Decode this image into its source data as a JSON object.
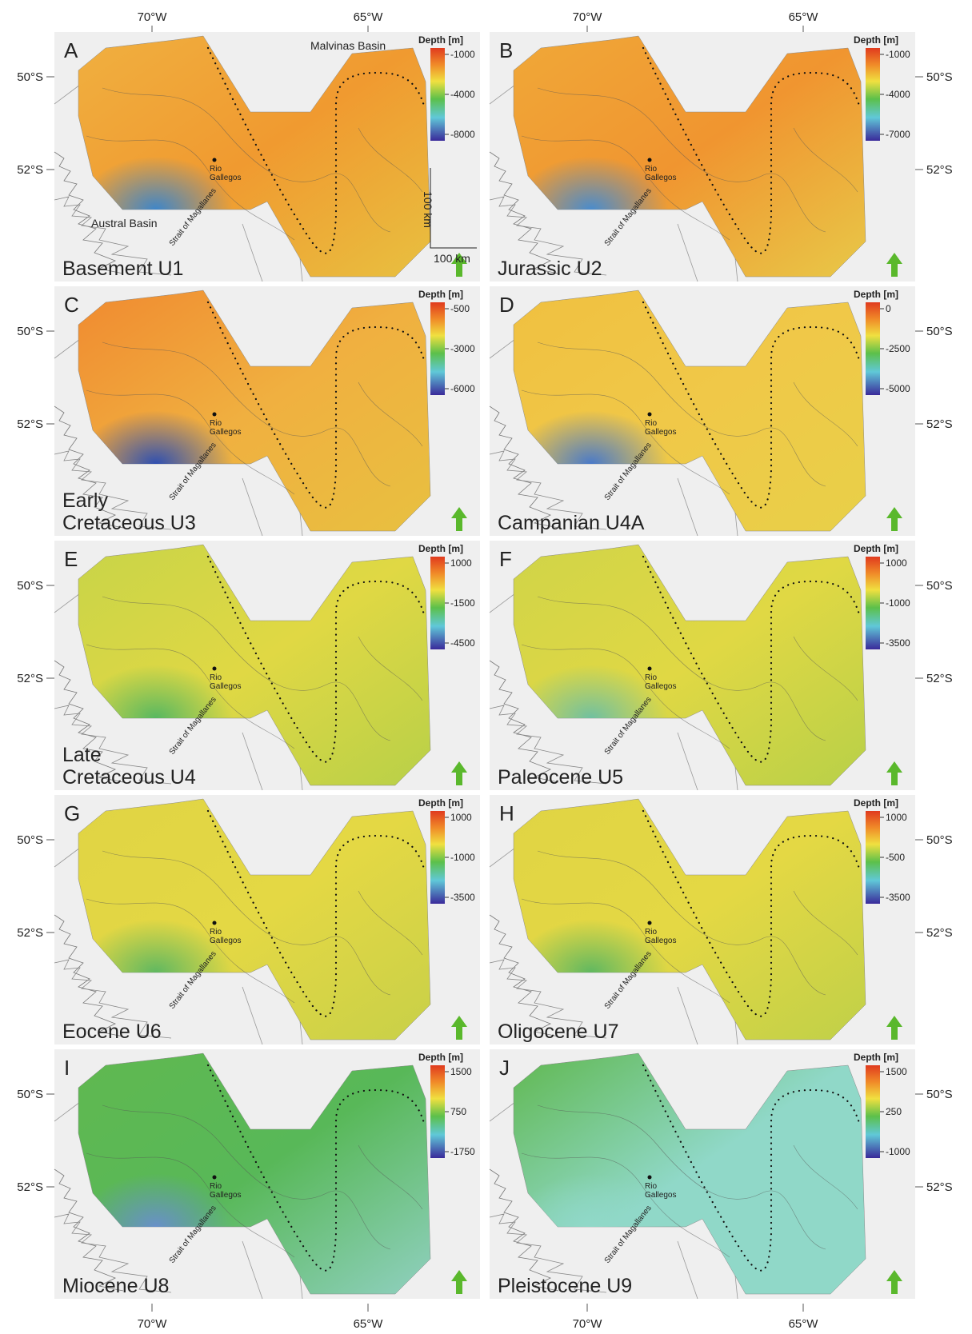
{
  "top_labels": [
    [
      "70°W",
      "65°W"
    ],
    [
      "70°W",
      "65°W"
    ]
  ],
  "bottom_labels": [
    [
      "70°W",
      "65°W"
    ],
    [
      "70°W",
      "65°W"
    ]
  ],
  "panels": [
    {
      "letter": "A",
      "title": [
        "Basement U1"
      ],
      "legend_title": "Depth [m]",
      "legend_ticks": [
        "-1000",
        "-4000",
        "-8000"
      ],
      "lat_labels": [
        "50°S",
        "52°S"
      ],
      "places": {
        "rio": [
          "Rio",
          "Gallegos"
        ],
        "strait": "Strait of Magallanes"
      },
      "annotations": {
        "malvinas": "Malvinas Basin",
        "austral": "Austral Basin",
        "scale_v": "100 km",
        "scale_h": "100 km"
      }
    },
    {
      "letter": "B",
      "title": [
        "Jurassic U2"
      ],
      "legend_title": "Depth [m]",
      "legend_ticks": [
        "-1000",
        "-4000",
        "-7000"
      ],
      "lat_labels": [
        "50°S",
        "52°S"
      ],
      "places": {
        "rio": [
          "Rio",
          "Gallegos"
        ],
        "strait": "Strait of Magallanes"
      }
    },
    {
      "letter": "C",
      "title": [
        "Early",
        "Cretaceous U3"
      ],
      "legend_title": "Depth [m]",
      "legend_ticks": [
        "-500",
        "-3000",
        "-6000"
      ],
      "lat_labels": [
        "50°S",
        "52°S"
      ],
      "places": {
        "rio": [
          "Rio",
          "Gallegos"
        ],
        "strait": "Strait of Magallanes"
      }
    },
    {
      "letter": "D",
      "title": [
        "Campanian U4A"
      ],
      "legend_title": "Depth [m]",
      "legend_ticks": [
        "0",
        "-2500",
        "-5000"
      ],
      "lat_labels": [
        "50°S",
        "52°S"
      ],
      "places": {
        "rio": [
          "Rio",
          "Gallegos"
        ],
        "strait": "Strait of Magallanes"
      }
    },
    {
      "letter": "E",
      "title": [
        "Late",
        "Cretaceous U4"
      ],
      "legend_title": "Depth [m]",
      "legend_ticks": [
        "1000",
        "-1500",
        "-4500"
      ],
      "lat_labels": [
        "50°S",
        "52°S"
      ],
      "places": {
        "rio": [
          "Rio",
          "Gallegos"
        ],
        "strait": "Strait of Magallanes"
      }
    },
    {
      "letter": "F",
      "title": [
        "Paleocene U5"
      ],
      "legend_title": "Depth [m]",
      "legend_ticks": [
        "1000",
        "-1000",
        "-3500"
      ],
      "lat_labels": [
        "50°S",
        "52°S"
      ],
      "places": {
        "rio": [
          "Rio",
          "Gallegos"
        ],
        "strait": "Strait of Magallanes"
      }
    },
    {
      "letter": "G",
      "title": [
        "Eocene U6"
      ],
      "legend_title": "Depth [m]",
      "legend_ticks": [
        "1000",
        "-1000",
        "-3500"
      ],
      "lat_labels": [
        "50°S",
        "52°S"
      ],
      "places": {
        "rio": [
          "Rio",
          "Gallegos"
        ],
        "strait": "Strait of Magallanes"
      }
    },
    {
      "letter": "H",
      "title": [
        "Oligocene U7"
      ],
      "legend_title": "Depth [m]",
      "legend_ticks": [
        "1000",
        "-500",
        "-3500"
      ],
      "lat_labels": [
        "50°S",
        "52°S"
      ],
      "places": {
        "rio": [
          "Rio",
          "Gallegos"
        ],
        "strait": "Strait of Magallanes"
      }
    },
    {
      "letter": "I",
      "title": [
        "Miocene U8"
      ],
      "legend_title": "Depth [m]",
      "legend_ticks": [
        "1500",
        "750",
        "-1750"
      ],
      "lat_labels": [
        "50°S",
        "52°S"
      ],
      "places": {
        "rio": [
          "Rio",
          "Gallegos"
        ],
        "strait": "Strait of Magallanes"
      }
    },
    {
      "letter": "J",
      "title": [
        "Pleistocene U9"
      ],
      "legend_title": "Depth [m]",
      "legend_ticks": [
        "1500",
        "250",
        "-1000"
      ],
      "lat_labels": [
        "50°S",
        "52°S"
      ],
      "places": {
        "rio": [
          "Rio",
          "Gallegos"
        ],
        "strait": "Strait of Magallanes"
      }
    }
  ]
}
